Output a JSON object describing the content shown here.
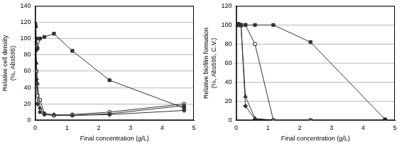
{
  "chart_data": [
    {
      "type": "line",
      "x_label": "Final concentration (g/L)",
      "y_label": [
        "Relative cell density",
        "(%, Abs595)"
      ],
      "x": [
        0,
        0.018,
        0.037,
        0.073,
        0.15,
        0.29,
        0.59,
        1.17,
        2.34,
        4.69
      ],
      "series": [
        {
          "color": "#333333",
          "marker": "square",
          "values": [
            118,
            115,
            100,
            88,
            100,
            102,
            106,
            85,
            49,
            15
          ]
        },
        {
          "color": "#333333",
          "marker": "triangle",
          "values": [
            100,
            95,
            70,
            45,
            15,
            8,
            7,
            6,
            8,
            18
          ]
        },
        {
          "color": "#333333",
          "marker": "open_square",
          "values": [
            100,
            90,
            60,
            30,
            25,
            8,
            6,
            7,
            10,
            20
          ]
        },
        {
          "color": "#333333",
          "marker": "diamond",
          "values": [
            100,
            85,
            50,
            20,
            10,
            7,
            6,
            6,
            7,
            12
          ]
        }
      ],
      "xlim": [
        0,
        5
      ],
      "xticks": [
        0,
        1,
        2,
        3,
        4,
        5
      ],
      "ylim": [
        0,
        140
      ],
      "yticks": [
        0,
        20,
        40,
        60,
        80,
        100,
        120,
        140
      ],
      "grid": true
    },
    {
      "type": "line",
      "x_label": "Final concentration (g/L)",
      "y_label": [
        "Relative biofilm formation",
        "(%, Abs595, C.V.)"
      ],
      "x": [
        0,
        0.018,
        0.037,
        0.073,
        0.15,
        0.29,
        0.59,
        1.17,
        2.34,
        4.69
      ],
      "series": [
        {
          "color": "#333333",
          "marker": "square",
          "values": [
            100,
            100,
            100,
            101,
            100,
            100,
            100,
            100,
            82,
            1
          ]
        },
        {
          "color": "#333333",
          "marker": "open_square",
          "values": [
            100,
            100,
            100,
            100,
            100,
            100,
            80,
            0,
            0,
            0
          ]
        },
        {
          "color": "#333333",
          "marker": "diamond",
          "values": [
            100,
            100,
            100,
            101,
            100,
            15,
            1,
            0,
            0,
            0
          ]
        },
        {
          "color": "#333333",
          "marker": "triangle",
          "values": [
            100,
            101,
            100,
            100,
            99,
            25,
            2,
            0,
            0,
            0
          ]
        }
      ],
      "xlim": [
        0,
        5
      ],
      "xticks": [
        0,
        1,
        2,
        3,
        4,
        5
      ],
      "ylim": [
        0,
        120
      ],
      "yticks": [
        0,
        20,
        40,
        60,
        80,
        100,
        120
      ],
      "grid": true
    }
  ]
}
